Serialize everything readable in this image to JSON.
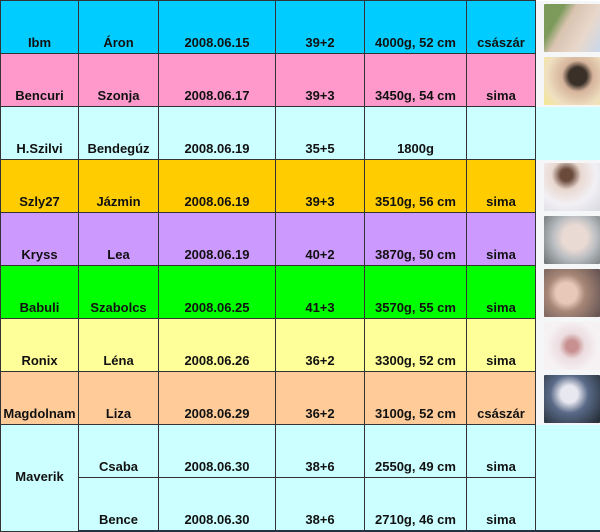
{
  "rows": [
    {
      "nick": "Ibm",
      "baby": "Áron",
      "date": "2008.06.15",
      "week": "39+2",
      "size": "4000g, 52 cm",
      "birth": "császár",
      "color": "#00ccff",
      "photo": true,
      "photo_bg": "#f4f6f8",
      "photo_tone": "linear-gradient(120deg,#7c9a5a 0 25%,#d9c3b0 40%,#e8d8cc 70%,#c9d7ea)"
    },
    {
      "nick": "Bencuri",
      "baby": "Szonja",
      "date": "2008.06.17",
      "week": "39+3",
      "size": "3450g, 54 cm",
      "birth": "sima",
      "color": "#ff99cc",
      "photo": true,
      "photo_bg": "#f4f6f8",
      "photo_tone": "radial-gradient(circle at 60% 40%,#3a3028 0 20%,#d6b49c 35%,#efe0c0 70%,#f5e890)"
    },
    {
      "nick": "H.Szilvi",
      "baby": "Bendegúz",
      "date": "2008.06.19",
      "week": "35+5",
      "size": "1800g",
      "birth": "",
      "color": "#ccffff",
      "photo": false,
      "photo_bg": "#ccffff"
    },
    {
      "nick": "Szly27",
      "baby": "Jázmin",
      "date": "2008.06.19",
      "week": "39+3",
      "size": "3510g, 56 cm",
      "birth": "sima",
      "color": "#ffcc00",
      "photo": true,
      "photo_bg": "#f4f6f8",
      "photo_tone": "radial-gradient(circle at 40% 25%,#6a4a3a 0 12%,#e9d8d0 30%,#f2f0f4 60%,#d8d8e0)"
    },
    {
      "nick": "Kryss",
      "baby": "Lea",
      "date": "2008.06.19",
      "week": "40+2",
      "size": "3870g, 50 cm",
      "birth": "sima",
      "color": "#cc99ff",
      "photo": true,
      "photo_bg": "#f4f6f8",
      "photo_tone": "radial-gradient(circle at 55% 45%,#eadad4 0 30%,#b8bcc0 55%,#6a7070)"
    },
    {
      "nick": "Babuli",
      "baby": "Szabolcs",
      "date": "2008.06.25",
      "week": "41+3",
      "size": "3570g, 55 cm",
      "birth": "sima",
      "color": "#00ff00",
      "photo": true,
      "photo_bg": "#f4f6f8",
      "photo_tone": "radial-gradient(circle at 40% 50%,#e8c8b8 0 25%,#a88878 45%,#605050)"
    },
    {
      "nick": "Ronix",
      "baby": "Léna",
      "date": "2008.06.26",
      "week": "36+2",
      "size": "3300g, 52 cm",
      "birth": "sima",
      "color": "#ffff99",
      "photo": true,
      "photo_bg": "#f4f6f8",
      "photo_tone": "radial-gradient(circle at 50% 50%,#c89090 0 15%,#ecdce0 35%,#f6f2f4 70%)"
    },
    {
      "nick": "Magdolnam",
      "baby": "Liza",
      "date": "2008.06.29",
      "week": "36+2",
      "size": "3100g, 52 cm",
      "birth": "császár",
      "color": "#ffcc99",
      "photo": true,
      "photo_bg": "#f4f6f8",
      "photo_tone": "radial-gradient(circle at 45% 40%,#e8e8f0 0 20%,#5a6a88 45%,#202830)"
    }
  ],
  "twins": {
    "nick": "Maverik",
    "color": "#ccffff",
    "babies": [
      {
        "baby": "Csaba",
        "date": "2008.06.30",
        "week": "38+6",
        "size": "2550g, 49 cm",
        "birth": "sima"
      },
      {
        "baby": "Bence",
        "date": "2008.06.30",
        "week": "38+6",
        "size": "2710g, 46 cm",
        "birth": "sima"
      }
    ]
  }
}
